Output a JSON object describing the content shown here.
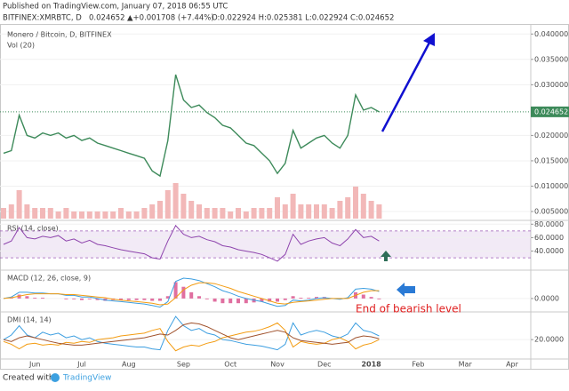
{
  "header": {
    "published": "Published on TradingView.com, January 07, 2018 06:55 UTC",
    "symbol": "BITFINEX:XMRBTC, D",
    "last": "0.024652",
    "change": "▲+0.001708 (+7.44%)",
    "ohlc": "O:0.022924 H:0.025381 L:0.022924 C:0.024652"
  },
  "annotation": "End of bearish level",
  "footer": {
    "created": "Created with",
    "brand": "TradingView"
  },
  "chart_data": [
    {
      "type": "line",
      "title": "Monero / Bitcoin, D, BITFINEX",
      "subtitle": "Vol (20)",
      "categories": [
        null,
        null,
        null,
        null,
        "Jun",
        null,
        null,
        null,
        null,
        null,
        "Jul",
        null,
        null,
        null,
        null,
        null,
        "Aug",
        null,
        null,
        null,
        null,
        null,
        null,
        "Sep",
        null,
        null,
        null,
        null,
        null,
        "Oct",
        null,
        null,
        null,
        null,
        null,
        "Nov",
        null,
        null,
        null,
        null,
        null,
        "Dec",
        null,
        null,
        null,
        null,
        null,
        "2018",
        null,
        null,
        null,
        null,
        null,
        "Feb",
        null,
        null,
        null,
        null,
        null,
        "Mar",
        null,
        null,
        null,
        null,
        null,
        "Apr",
        null,
        null
      ],
      "series": [
        {
          "color": "#3d8a5a",
          "values": [
            0.0165,
            0.017,
            0.024,
            0.02,
            0.0195,
            0.0205,
            0.02,
            0.0205,
            0.0195,
            0.02,
            0.019,
            0.0195,
            0.0185,
            0.018,
            0.0175,
            0.017,
            0.0165,
            0.016,
            0.0155,
            0.013,
            0.012,
            0.019,
            0.032,
            0.027,
            0.0255,
            0.026,
            0.0245,
            0.0235,
            0.022,
            0.0215,
            0.02,
            0.0185,
            0.018,
            0.0165,
            0.015,
            0.0125,
            0.0145,
            0.021,
            0.0175,
            0.0185,
            0.0195,
            0.02,
            0.0185,
            0.0175,
            0.02,
            0.028,
            0.025,
            0.0255,
            0.024652,
            null,
            null,
            null,
            null,
            null,
            null,
            null,
            null,
            null,
            null,
            null,
            null,
            null,
            null,
            null,
            null,
            null,
            null,
            null
          ]
        }
      ],
      "volume": {
        "color": "#f2b8b8",
        "values": [
          3,
          4,
          8,
          4,
          3,
          3,
          3,
          2,
          3,
          2,
          2,
          2,
          2,
          2,
          2,
          3,
          2,
          2,
          3,
          4,
          5,
          8,
          10,
          7,
          5,
          4,
          3,
          3,
          3,
          2,
          3,
          2,
          3,
          3,
          3,
          6,
          4,
          7,
          4,
          4,
          4,
          4,
          3,
          5,
          6,
          9,
          7,
          5,
          4,
          null,
          null,
          null,
          null,
          null,
          null,
          null,
          null,
          null,
          null,
          null,
          null,
          null,
          null,
          null,
          null,
          null,
          null,
          null
        ]
      },
      "ylim": [
        0.0036,
        0.0411
      ],
      "yticks": [
        {
          "value": 0.005,
          "label": "0.005000"
        },
        {
          "value": 0.01,
          "label": "0.010000"
        },
        {
          "value": 0.015,
          "label": "0.015000"
        },
        {
          "value": 0.02,
          "label": "0.020000"
        },
        {
          "value": 0.03,
          "label": "0.030000"
        },
        {
          "value": 0.035,
          "label": "0.035000"
        },
        {
          "value": 0.04,
          "label": "0.040000"
        }
      ],
      "last_line": true,
      "grid": true
    },
    {
      "type": "line",
      "title": "RSI (14, close)",
      "band": [
        30,
        70
      ],
      "series": [
        {
          "color": "#8e44ad",
          "values": [
            50,
            55,
            75,
            60,
            58,
            62,
            60,
            63,
            55,
            58,
            52,
            56,
            50,
            48,
            45,
            42,
            40,
            38,
            36,
            30,
            28,
            55,
            78,
            65,
            60,
            62,
            57,
            54,
            48,
            46,
            42,
            40,
            38,
            35,
            30,
            25,
            35,
            65,
            50,
            55,
            58,
            60,
            52,
            48,
            58,
            72,
            60,
            62,
            55,
            null,
            null,
            null,
            null,
            null,
            null,
            null,
            null,
            null,
            null,
            null,
            null,
            null,
            null,
            null,
            null,
            null,
            null,
            null
          ]
        }
      ],
      "ylim": [
        13,
        83
      ],
      "yticks": [
        {
          "value": 40,
          "label": "40.0000"
        },
        {
          "value": 60,
          "label": "60.0000"
        },
        {
          "value": 80,
          "label": "80.0000"
        }
      ],
      "grid": true
    },
    {
      "type": "line",
      "title": "MACD (12, 26, close, 9)",
      "series": [
        {
          "style": "histogram",
          "color": "#e06fa0",
          "values": [
            0,
            0.0001,
            0.0005,
            0.0003,
            0.0001,
            0.0001,
            0,
            0,
            -0.0001,
            -0.0001,
            -0.0002,
            -0.0001,
            -0.0002,
            -0.0003,
            -0.0002,
            -0.0002,
            -0.0002,
            -0.0002,
            -0.0002,
            -0.0003,
            -0.0003,
            0.0003,
            0.0021,
            0.0015,
            0.0008,
            0.0003,
            -0.0001,
            -0.0004,
            -0.0006,
            -0.0006,
            -0.0006,
            -0.0006,
            -0.0005,
            -0.0004,
            -0.0004,
            -0.0004,
            -0.0002,
            0.0003,
            0.0001,
            0.0001,
            0.0002,
            0.0002,
            0,
            -0.0001,
            0.0001,
            0.0008,
            0.0005,
            0.0002,
            -0.0001,
            null,
            null,
            null,
            null,
            null,
            null,
            null,
            null,
            null,
            null,
            null,
            null,
            null,
            null,
            null,
            null,
            null,
            null,
            null
          ]
        },
        {
          "color": "#3c9ee0",
          "values": [
            0,
            0.0002,
            0.0008,
            0.0008,
            0.0007,
            0.0007,
            0.0006,
            0.0006,
            0.0004,
            0.0004,
            0.0002,
            0.0002,
            0,
            -0.0002,
            -0.0003,
            -0.0004,
            -0.0005,
            -0.0006,
            -0.0007,
            -0.0009,
            -0.0011,
            -0.0004,
            0.0022,
            0.0026,
            0.0025,
            0.0023,
            0.0019,
            0.0015,
            0.001,
            0.0007,
            0.0003,
            0,
            -0.0002,
            -0.0004,
            -0.0007,
            -0.001,
            -0.0009,
            -0.0002,
            -0.0003,
            -0.0002,
            0,
            0.0001,
            0,
            -0.0001,
            0.0001,
            0.0012,
            0.0013,
            0.0012,
            0.0009,
            null,
            null,
            null,
            null,
            null,
            null,
            null,
            null,
            null,
            null,
            null,
            null,
            null,
            null,
            null,
            null,
            null,
            null,
            null
          ]
        },
        {
          "color": "#f39c12",
          "values": [
            0,
            0.0001,
            0.0003,
            0.0005,
            0.0006,
            0.0006,
            0.0006,
            0.0006,
            0.0005,
            0.0005,
            0.0004,
            0.0003,
            0.0002,
            0.0001,
            -0.0001,
            -0.0002,
            -0.0003,
            -0.0004,
            -0.0005,
            -0.0006,
            -0.0008,
            -0.0007,
            0.0001,
            0.0011,
            0.0017,
            0.002,
            0.002,
            0.0019,
            0.0016,
            0.0013,
            0.0009,
            0.0006,
            0.0003,
            0,
            -0.0003,
            -0.0006,
            -0.0007,
            -0.0005,
            -0.0004,
            -0.0003,
            -0.0002,
            -0.0001,
            0,
            0,
            0,
            0.0004,
            0.0008,
            0.001,
            0.001,
            null,
            null,
            null,
            null,
            null,
            null,
            null,
            null,
            null,
            null,
            null,
            null,
            null,
            null,
            null,
            null,
            null,
            null,
            null
          ]
        }
      ],
      "ylim": [
        -0.0016,
        0.0034
      ],
      "yticks": [
        {
          "value": 0,
          "label": "0.0000"
        }
      ],
      "grid": true
    },
    {
      "type": "line",
      "title": "DMI (14, 14)",
      "series": [
        {
          "color": "#3c9ee0",
          "values": [
            20,
            25,
            35,
            25,
            22,
            28,
            25,
            27,
            22,
            24,
            20,
            22,
            18,
            16,
            15,
            14,
            13,
            12,
            12,
            10,
            9,
            30,
            45,
            35,
            30,
            32,
            27,
            25,
            20,
            19,
            17,
            15,
            14,
            13,
            11,
            9,
            15,
            38,
            25,
            28,
            30,
            28,
            24,
            22,
            26,
            38,
            30,
            28,
            24,
            null,
            null,
            null,
            null,
            null,
            null,
            null,
            null,
            null,
            null,
            null,
            null,
            null,
            null,
            null,
            null,
            null,
            null,
            null
          ]
        },
        {
          "color": "#f39c12",
          "values": [
            18,
            15,
            10,
            15,
            16,
            14,
            15,
            14,
            17,
            16,
            18,
            17,
            20,
            21,
            22,
            24,
            25,
            26,
            27,
            30,
            32,
            18,
            8,
            12,
            14,
            13,
            16,
            18,
            22,
            24,
            26,
            28,
            29,
            31,
            34,
            38,
            30,
            12,
            18,
            16,
            15,
            16,
            20,
            22,
            18,
            10,
            14,
            16,
            20,
            null,
            null,
            null,
            null,
            null,
            null,
            null,
            null,
            null,
            null,
            null,
            null,
            null,
            null,
            null,
            null,
            null,
            null,
            null
          ]
        },
        {
          "color": "#a0522d",
          "values": [
            20,
            18,
            22,
            24,
            22,
            20,
            18,
            16,
            15,
            14,
            14,
            15,
            16,
            17,
            18,
            19,
            20,
            21,
            22,
            24,
            26,
            25,
            30,
            36,
            38,
            37,
            34,
            30,
            26,
            22,
            20,
            22,
            24,
            26,
            28,
            30,
            28,
            22,
            19,
            18,
            17,
            16,
            15,
            16,
            17,
            22,
            24,
            23,
            21,
            null,
            null,
            null,
            null,
            null,
            null,
            null,
            null,
            null,
            null,
            null,
            null,
            null,
            null,
            null,
            null,
            null,
            null,
            null
          ]
        }
      ],
      "ylim": [
        0,
        48
      ],
      "yticks": [
        {
          "value": 20,
          "label": "20.0000"
        }
      ],
      "grid": true
    }
  ]
}
